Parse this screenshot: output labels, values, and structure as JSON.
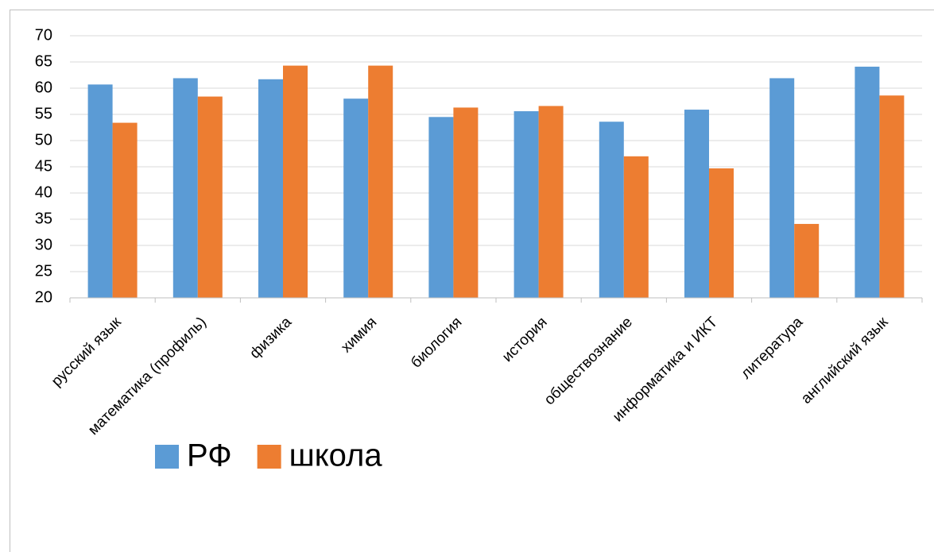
{
  "chart_data": {
    "type": "bar",
    "categories": [
      "русский язык",
      "математика (профиль)",
      "физика",
      "химия",
      "биология",
      "история",
      "обществознание",
      "информатика и ИКТ",
      "литература",
      "английский язык"
    ],
    "series": [
      {
        "name": "РФ",
        "color": "#5b9bd5",
        "values": [
          60.7,
          61.9,
          61.7,
          58,
          54.5,
          55.6,
          53.6,
          55.9,
          61.9,
          64.1
        ]
      },
      {
        "name": "школа",
        "color": "#ed7d31",
        "values": [
          53.4,
          58.4,
          64.3,
          64.3,
          56.3,
          56.6,
          47,
          44.7,
          34.1,
          58.6
        ]
      }
    ],
    "ylim": [
      20,
      70
    ],
    "yticks": [
      20,
      25,
      30,
      35,
      40,
      45,
      50,
      55,
      60,
      65,
      70
    ],
    "grid": true,
    "legend": "bottom-left"
  }
}
